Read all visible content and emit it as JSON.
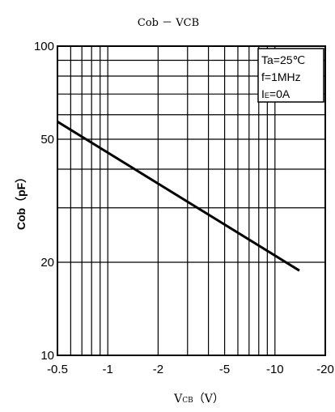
{
  "chart_data": {
    "type": "line",
    "title": "Cob － VCB",
    "xlabel_main": "V",
    "xlabel_sub": "CB",
    "xlabel_unit": "（V）",
    "ylabel": "Cob（pF）",
    "x_scale": "log",
    "y_scale": "log",
    "xlim": [
      -0.5,
      -20
    ],
    "ylim": [
      10,
      100
    ],
    "x_ticks": [
      {
        "value": -0.5,
        "label": "-0.5"
      },
      {
        "value": -1,
        "label": "-1"
      },
      {
        "value": -2,
        "label": "-2"
      },
      {
        "value": -5,
        "label": "-5"
      },
      {
        "value": -10,
        "label": "-10"
      },
      {
        "value": -20,
        "label": "-20"
      }
    ],
    "y_ticks": [
      {
        "value": 10,
        "label": "10"
      },
      {
        "value": 20,
        "label": "20"
      },
      {
        "value": 50,
        "label": "50"
      },
      {
        "value": 100,
        "label": "100"
      }
    ],
    "x_grid": [
      -0.5,
      -0.6,
      -0.7,
      -0.8,
      -0.9,
      -1,
      -2,
      -3,
      -4,
      -5,
      -6,
      -7,
      -8,
      -9,
      -10,
      -20
    ],
    "y_grid": [
      10,
      20,
      30,
      40,
      50,
      60,
      70,
      80,
      90,
      100
    ],
    "grid": true,
    "legend": "none",
    "conditions": {
      "ta": "Ta=25℃",
      "f": "f=1MHz",
      "ie_main": "I",
      "ie_sub": "E",
      "ie_rest": "=0A",
      "placement": "top-right"
    },
    "series": [
      {
        "x": [
          -0.5,
          -14
        ],
        "y": [
          57,
          18.8
        ]
      }
    ]
  }
}
